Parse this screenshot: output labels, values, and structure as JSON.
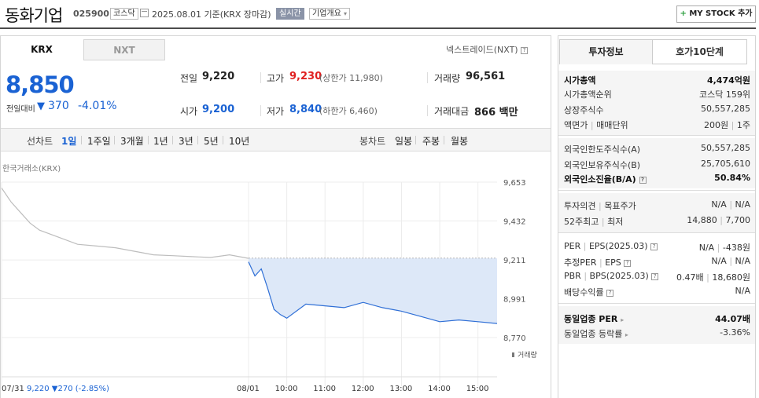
{
  "header": {
    "company": "동화기업",
    "code": "025900",
    "market": "코스닥",
    "date_text": "2025.08.01  기준(KRX 장마감)",
    "live_label": "실시간",
    "overview_label": "기업개요",
    "mystock_label": "MY STOCK 추가"
  },
  "tabs": {
    "krx": "KRX",
    "nxt": "NXT",
    "nxt_link": "넥스트레이드(NXT)"
  },
  "price": {
    "current": "8,850",
    "change_label": "전일대비",
    "change_abs": "370",
    "change_pct": "-4.01%"
  },
  "summary": {
    "prev_label": "전일",
    "prev": "9,220",
    "high_label": "고가",
    "high": "9,230",
    "upper_limit": "(상한가 11,980)",
    "volume_label": "거래량",
    "volume": "96,561",
    "open_label": "시가",
    "open": "9,200",
    "low_label": "저가",
    "low": "8,840",
    "lower_limit": "(하한가 6,460)",
    "amount_label": "거래대금",
    "amount": "866 백만"
  },
  "chart_controls": {
    "line_label": "선차트",
    "periods": [
      "1일",
      "1주일",
      "3개월",
      "1년",
      "3년",
      "5년",
      "10년"
    ],
    "candle_label": "봉차트",
    "candles": [
      "일봉",
      "주봉",
      "월봉"
    ]
  },
  "chart_data": {
    "type": "line",
    "source_label": "한국거래소(KRX)",
    "y_ticks": [
      "9,653",
      "9,432",
      "9,211",
      "8,991",
      "8,770"
    ],
    "ylim": [
      8770,
      9653
    ],
    "x_ticks": [
      "07/31",
      "08/01",
      "10:00",
      "11:00",
      "12:00",
      "13:00",
      "14:00",
      "15:00"
    ],
    "prev_close": 9220,
    "volume_label": "거래량",
    "prev_day_summary": "9,220 ▼270 (-2.85%)",
    "series": [
      {
        "name": "07/31",
        "x": [
          "07/31 09:00",
          "07/31 09:15",
          "07/31 09:30",
          "07/31 09:45",
          "07/31 10:00",
          "07/31 10:30",
          "07/31 11:00",
          "07/31 11:30",
          "07/31 12:00",
          "07/31 12:30",
          "07/31 13:00",
          "07/31 13:30",
          "07/31 14:00",
          "07/31 14:30",
          "07/31 15:00",
          "07/31 15:30"
        ],
        "values": [
          9620,
          9540,
          9480,
          9420,
          9380,
          9340,
          9300,
          9290,
          9280,
          9260,
          9240,
          9235,
          9230,
          9225,
          9240,
          9220
        ]
      },
      {
        "name": "08/01",
        "x": [
          "08/01 09:00",
          "08/01 09:10",
          "08/01 09:20",
          "08/01 09:30",
          "08/01 09:40",
          "08/01 09:50",
          "08/01 10:00",
          "08/01 10:30",
          "08/01 11:00",
          "08/01 11:30",
          "08/01 12:00",
          "08/01 12:30",
          "08/01 13:00",
          "08/01 13:30",
          "08/01 14:00",
          "08/01 14:30",
          "08/01 15:00",
          "08/01 15:30"
        ],
        "values": [
          9200,
          9120,
          9160,
          9050,
          8930,
          8900,
          8880,
          8960,
          8950,
          8940,
          8970,
          8940,
          8920,
          8890,
          8860,
          8870,
          8860,
          8850
        ]
      }
    ]
  },
  "right_tabs": {
    "info": "투자정보",
    "order": "호가10단계"
  },
  "invest": {
    "market_cap_label": "시가총액",
    "market_cap": "4,474억원",
    "market_cap_rank_label": "시가총액순위",
    "market_cap_rank": "코스닥 159위",
    "shares_label": "상장주식수",
    "shares": "50,557,285",
    "par_label": "액면가",
    "unit_label": "매매단위",
    "par": "200원",
    "unit": "1주",
    "foreign_limit_label": "외국인한도주식수(A)",
    "foreign_limit": "50,557,285",
    "foreign_hold_label": "외국인보유주식수(B)",
    "foreign_hold": "25,705,610",
    "foreign_rate_label": "외국인소진율(B/A)",
    "foreign_rate": "50.84%",
    "opinion_label": "투자의견",
    "target_label": "목표주가",
    "opinion": "N/A",
    "target": "N/A",
    "w52_high_label": "52주최고",
    "w52_low_label": "최저",
    "w52_high": "14,880",
    "w52_low": "7,700",
    "per_label": "PER",
    "eps_label": "EPS(2025.03)",
    "per": "N/A",
    "eps": "-438원",
    "est_per_label": "추정PER",
    "est_eps_label": "EPS",
    "est_per": "N/A",
    "est_eps": "N/A",
    "pbr_label": "PBR",
    "bps_label": "BPS(2025.03)",
    "pbr": "0.47배",
    "bps": "18,680원",
    "div_label": "배당수익률",
    "div": "N/A",
    "peer_per_label": "동일업종 PER",
    "peer_per": "44.07배",
    "peer_chg_label": "동일업종 등락률",
    "peer_chg": "-3.36%"
  }
}
